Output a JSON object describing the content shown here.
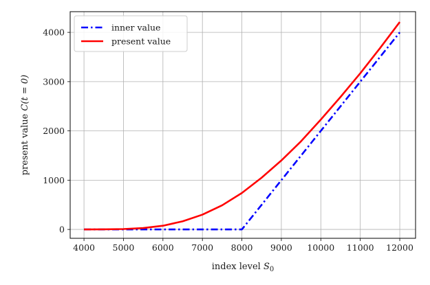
{
  "chart_data": {
    "type": "line",
    "title": "",
    "xlabel": "index level",
    "xlabel_symbol": "S",
    "xlabel_subscript": "0",
    "ylabel": "present value",
    "ylabel_symbol": "C(t = 0)",
    "xlim": [
      3650,
      12400
    ],
    "ylim": [
      -180,
      4420
    ],
    "x_ticks": [
      4000,
      5000,
      6000,
      7000,
      8000,
      9000,
      10000,
      11000,
      12000
    ],
    "y_ticks": [
      0,
      1000,
      2000,
      3000,
      4000
    ],
    "grid": true,
    "legend_position": "top-left",
    "series": [
      {
        "name": "inner value",
        "color": "#0000ff",
        "style": "dashdot",
        "x": [
          4000,
          5000,
          6000,
          7000,
          8000,
          9000,
          10000,
          11000,
          12000
        ],
        "y": [
          0,
          0,
          0,
          0,
          0,
          1000,
          2000,
          3000,
          4000
        ]
      },
      {
        "name": "present value",
        "color": "#ff0000",
        "style": "solid",
        "x": [
          4000,
          4500,
          5000,
          5500,
          6000,
          6500,
          7000,
          7500,
          8000,
          8500,
          9000,
          9500,
          10000,
          10500,
          11000,
          11500,
          12000
        ],
        "y": [
          0.2,
          1.5,
          8,
          28,
          75,
          165,
          300,
          490,
          740,
          1050,
          1400,
          1790,
          2230,
          2690,
          3170,
          3680,
          4210
        ]
      }
    ]
  }
}
